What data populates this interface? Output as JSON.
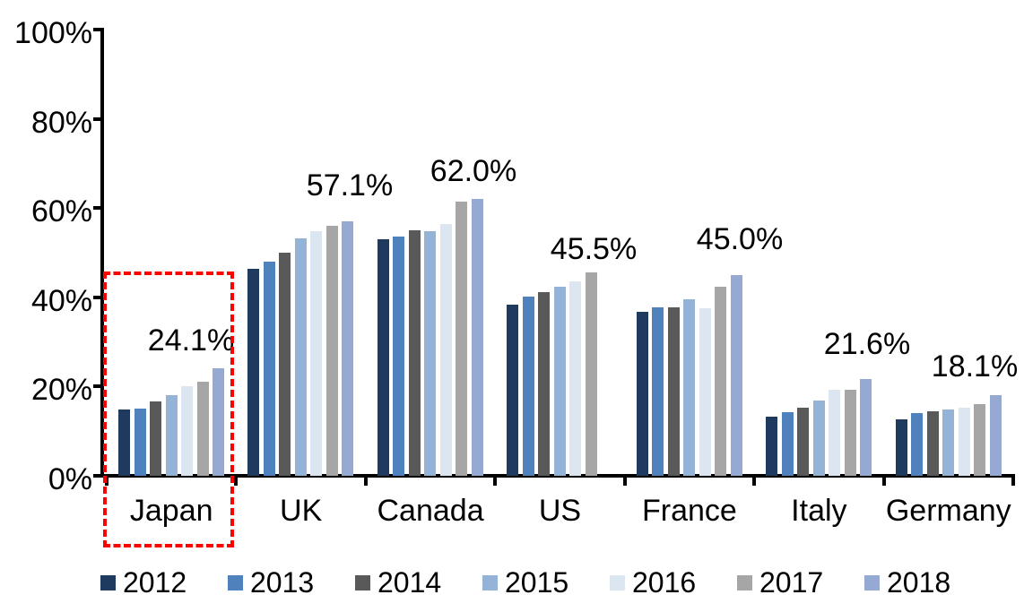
{
  "chart_data": {
    "type": "bar",
    "title": "",
    "xlabel": "",
    "ylabel": "",
    "categories": [
      "Japan",
      "UK",
      "Canada",
      "US",
      "France",
      "Italy",
      "Germany"
    ],
    "series": [
      {
        "name": "2012",
        "color": "#1F3A5F",
        "values": [
          14.8,
          46.4,
          53.1,
          38.3,
          36.7,
          13.3,
          12.6
        ]
      },
      {
        "name": "2013",
        "color": "#4F81BD",
        "values": [
          15.0,
          48.0,
          53.6,
          40.1,
          37.8,
          14.2,
          14.0
        ]
      },
      {
        "name": "2014",
        "color": "#595959",
        "values": [
          16.6,
          50.1,
          55.0,
          41.2,
          37.7,
          15.3,
          14.4
        ]
      },
      {
        "name": "2015",
        "color": "#95B3D7",
        "values": [
          18.1,
          53.3,
          54.9,
          42.3,
          39.5,
          16.9,
          14.8
        ]
      },
      {
        "name": "2016",
        "color": "#DCE6F1",
        "values": [
          20.1,
          54.9,
          56.4,
          43.6,
          37.5,
          19.3,
          15.3
        ]
      },
      {
        "name": "2017",
        "color": "#A6A6A6",
        "values": [
          21.1,
          56.0,
          61.5,
          45.5,
          42.4,
          19.2,
          16.1
        ]
      },
      {
        "name": "2018",
        "color": "#96A9D3",
        "values": [
          24.1,
          57.1,
          62.0,
          null,
          45.0,
          21.6,
          18.1
        ]
      }
    ],
    "yaxis": {
      "min": 0,
      "max": 100,
      "unit": "%",
      "ticks": [
        "0%",
        "20%",
        "40%",
        "60%",
        "80%",
        "100%"
      ],
      "tick_values": [
        0,
        20,
        40,
        60,
        80,
        100
      ]
    },
    "grid": "off",
    "annotations": [
      {
        "category": "Japan",
        "text": "24.1%"
      },
      {
        "category": "UK",
        "text": "57.1%"
      },
      {
        "category": "Canada",
        "text": "62.0%"
      },
      {
        "category": "US",
        "text": "45.5%"
      },
      {
        "category": "France",
        "text": "45.0%"
      },
      {
        "category": "Italy",
        "text": "21.6%"
      },
      {
        "category": "Germany",
        "text": "18.1%"
      }
    ],
    "legend": {
      "position": "bottom",
      "items": [
        "2012",
        "2013",
        "2014",
        "2015",
        "2016",
        "2017",
        "2018"
      ]
    },
    "highlight": {
      "category": "Japan",
      "style": "dashed-box",
      "color": "#FF0000"
    }
  }
}
